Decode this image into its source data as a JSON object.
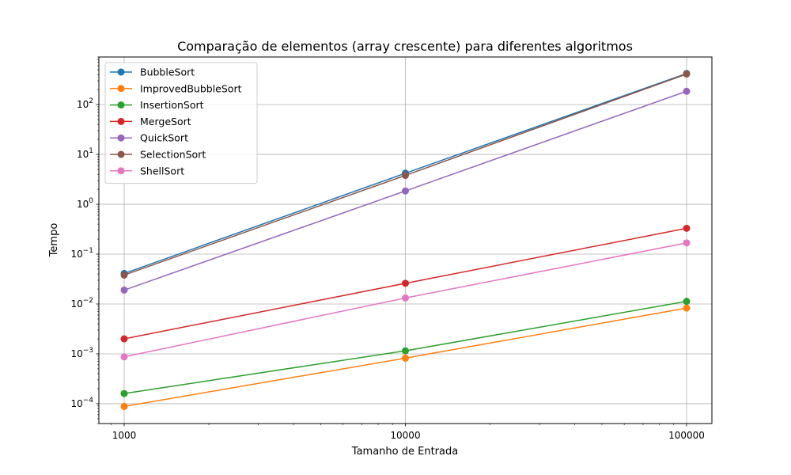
{
  "chart_data": {
    "type": "line",
    "title": "Comparação de elementos (array crescente) para diferentes algoritmos",
    "xlabel": "Tamanho de Entrada",
    "ylabel": "Tempo",
    "x": [
      1000,
      10000,
      100000
    ],
    "x_tick_labels": [
      "1000",
      "10000",
      "100000"
    ],
    "x_scale": "log",
    "y_scale": "log",
    "ylim": [
      4e-05,
      900
    ],
    "y_ticks": [
      {
        "base": "10",
        "exp": "−4",
        "value": 0.0001
      },
      {
        "base": "10",
        "exp": "−3",
        "value": 0.001
      },
      {
        "base": "10",
        "exp": "−2",
        "value": 0.01
      },
      {
        "base": "10",
        "exp": "−1",
        "value": 0.1
      },
      {
        "base": "10",
        "exp": "0",
        "value": 1
      },
      {
        "base": "10",
        "exp": "1",
        "value": 10
      },
      {
        "base": "10",
        "exp": "2",
        "value": 100
      }
    ],
    "grid": true,
    "legend_position": "top-left",
    "series": [
      {
        "name": "BubbleSort",
        "color": "#1f77b4",
        "values": [
          0.041,
          4.2,
          420
        ]
      },
      {
        "name": "ImprovedBubbleSort",
        "color": "#ff7f0e",
        "values": [
          8.8e-05,
          0.00082,
          0.0083
        ]
      },
      {
        "name": "InsertionSort",
        "color": "#2ca02c",
        "values": [
          0.00016,
          0.00115,
          0.0113
        ]
      },
      {
        "name": "MergeSort",
        "color": "#d62728",
        "values": [
          0.002,
          0.026,
          0.33
        ]
      },
      {
        "name": "QuickSort",
        "color": "#9467bd",
        "values": [
          0.019,
          1.85,
          185
        ]
      },
      {
        "name": "SelectionSort",
        "color": "#8c564b",
        "values": [
          0.038,
          3.8,
          410
        ]
      },
      {
        "name": "ShellSort",
        "color": "#e377c2",
        "values": [
          0.00087,
          0.0132,
          0.168
        ]
      }
    ]
  }
}
